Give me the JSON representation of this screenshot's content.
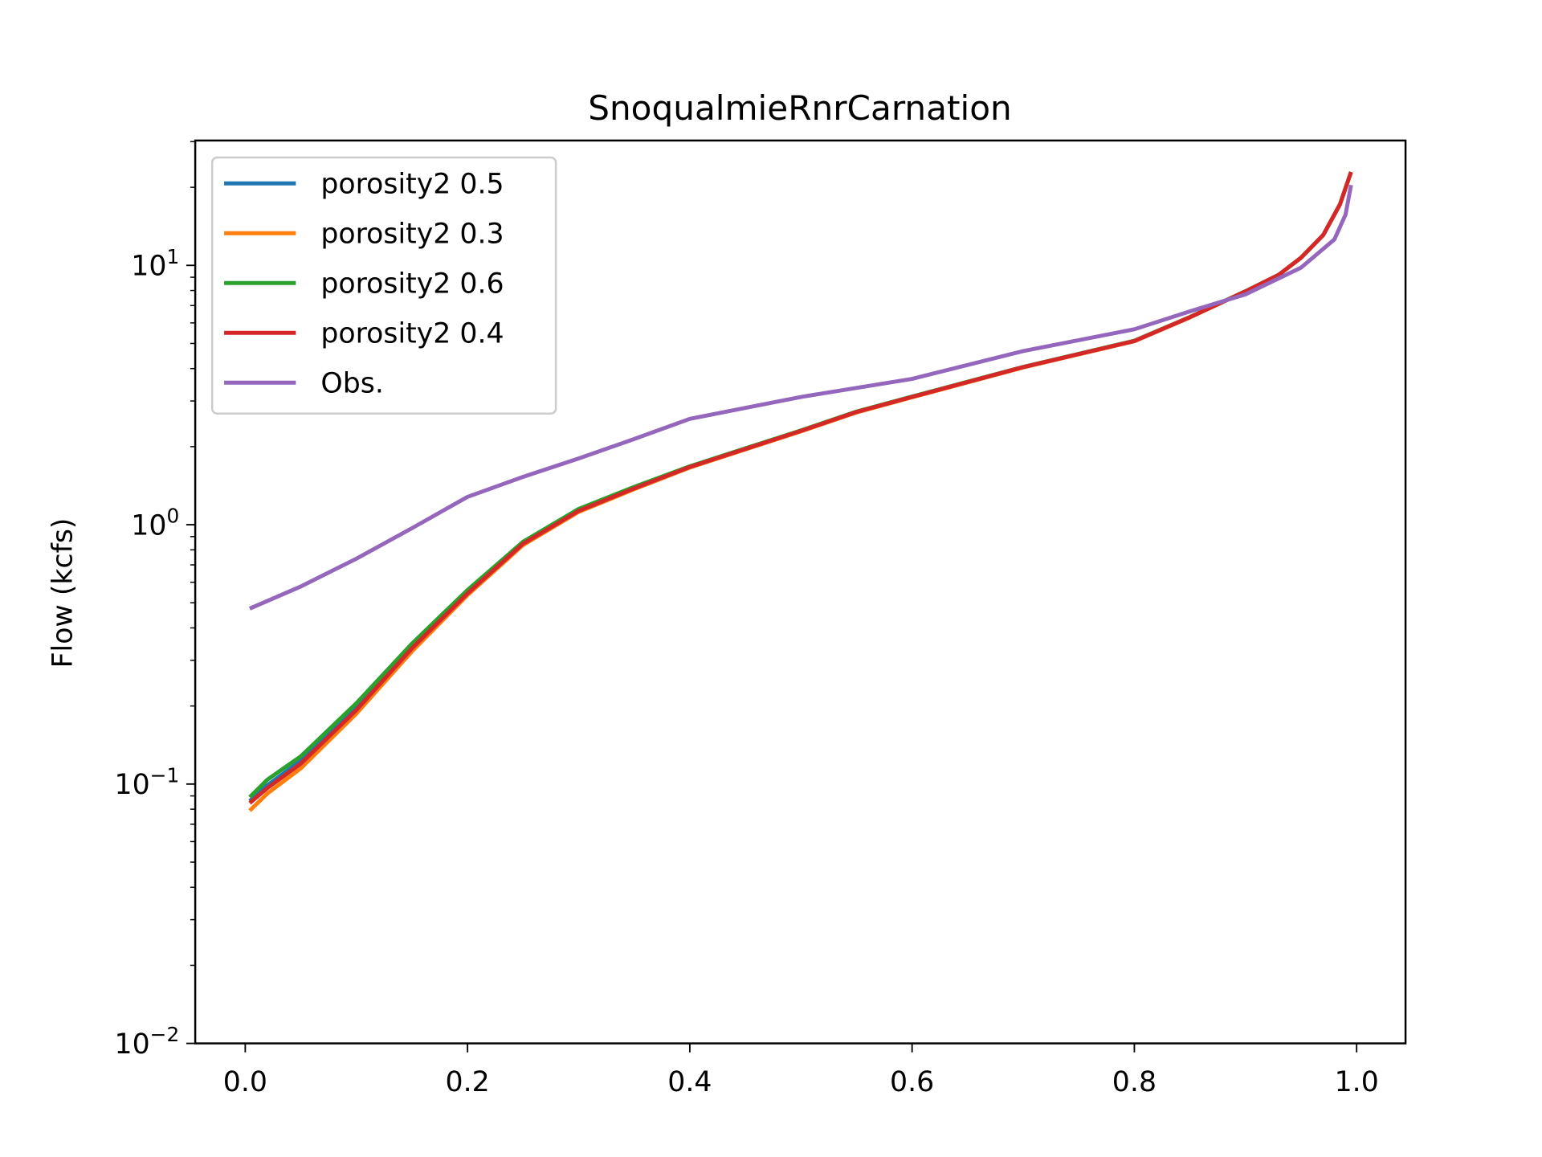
{
  "chart_data": {
    "type": "line",
    "title": "SnoqualmieRnrCarnation",
    "xlabel": "",
    "ylabel": "Flow (kcfs)",
    "xlim": [
      -0.045,
      1.044
    ],
    "ylim": [
      0.01,
      30.3
    ],
    "yscale": "log",
    "grid": false,
    "legend_position": "top-left",
    "xticks": [
      "0.0",
      "0.2",
      "0.4",
      "0.6",
      "0.8",
      "1.0"
    ],
    "xtick_values": [
      0,
      0.2,
      0.4,
      0.6,
      0.8,
      1.0
    ],
    "yticks": [
      {
        "value": 0.01,
        "base": "10",
        "exp": "−2"
      },
      {
        "value": 0.1,
        "base": "10",
        "exp": "−1"
      },
      {
        "value": 1,
        "base": "10",
        "exp": "0"
      },
      {
        "value": 10,
        "base": "10",
        "exp": "1"
      }
    ],
    "series": [
      {
        "name": "porosity2 0.5",
        "color": "#1f77b4",
        "x": [
          0.004,
          0.02,
          0.05,
          0.1,
          0.15,
          0.2,
          0.25,
          0.3,
          0.35,
          0.4,
          0.45,
          0.5,
          0.55,
          0.6,
          0.7,
          0.8,
          0.85,
          0.9,
          0.93,
          0.95,
          0.97,
          0.985,
          0.995
        ],
        "y": [
          0.086,
          0.099,
          0.123,
          0.197,
          0.338,
          0.548,
          0.85,
          1.14,
          1.39,
          1.67,
          1.96,
          2.3,
          2.72,
          3.11,
          4.05,
          5.11,
          6.31,
          7.94,
          9.2,
          10.7,
          13.1,
          17.2,
          22.9
        ]
      },
      {
        "name": "porosity2 0.3",
        "color": "#ff7f0e",
        "x": [
          0.004,
          0.02,
          0.05,
          0.1,
          0.15,
          0.2,
          0.25,
          0.3,
          0.35,
          0.4,
          0.45,
          0.5,
          0.55,
          0.6,
          0.7,
          0.8,
          0.85,
          0.9,
          0.93,
          0.95,
          0.97,
          0.985,
          0.995
        ],
        "y": [
          0.079,
          0.092,
          0.115,
          0.187,
          0.325,
          0.535,
          0.835,
          1.12,
          1.37,
          1.66,
          1.95,
          2.29,
          2.71,
          3.1,
          4.04,
          5.1,
          6.3,
          7.93,
          9.2,
          10.7,
          13.1,
          17.2,
          22.9
        ]
      },
      {
        "name": "porosity2 0.6",
        "color": "#2ca02c",
        "x": [
          0.004,
          0.02,
          0.05,
          0.1,
          0.15,
          0.2,
          0.25,
          0.3,
          0.35,
          0.4,
          0.45,
          0.5,
          0.55,
          0.6,
          0.7,
          0.8,
          0.85,
          0.9,
          0.93,
          0.95,
          0.97,
          0.985,
          0.995
        ],
        "y": [
          0.089,
          0.104,
          0.128,
          0.205,
          0.348,
          0.56,
          0.86,
          1.15,
          1.4,
          1.68,
          1.97,
          2.31,
          2.73,
          3.12,
          4.06,
          5.12,
          6.32,
          7.95,
          9.2,
          10.7,
          13.1,
          17.2,
          22.9
        ]
      },
      {
        "name": "porosity2 0.4",
        "color": "#d62728",
        "x": [
          0.004,
          0.02,
          0.05,
          0.1,
          0.15,
          0.2,
          0.25,
          0.3,
          0.35,
          0.4,
          0.45,
          0.5,
          0.55,
          0.6,
          0.7,
          0.8,
          0.85,
          0.9,
          0.93,
          0.95,
          0.97,
          0.985,
          0.995
        ],
        "y": [
          0.0845,
          0.0966,
          0.12,
          0.193,
          0.334,
          0.543,
          0.845,
          1.13,
          1.38,
          1.67,
          1.96,
          2.3,
          2.72,
          3.11,
          4.05,
          5.11,
          6.31,
          7.94,
          9.2,
          10.7,
          13.1,
          17.2,
          22.9
        ]
      },
      {
        "name": "Obs.",
        "color": "#9467bd",
        "x": [
          0.004,
          0.05,
          0.1,
          0.15,
          0.2,
          0.25,
          0.3,
          0.35,
          0.4,
          0.5,
          0.6,
          0.7,
          0.8,
          0.85,
          0.9,
          0.95,
          0.98,
          0.99,
          0.995
        ],
        "y": [
          0.475,
          0.578,
          0.74,
          0.97,
          1.28,
          1.53,
          1.8,
          2.14,
          2.56,
          3.11,
          3.65,
          4.67,
          5.67,
          6.65,
          7.73,
          9.8,
          12.6,
          15.7,
          20.4
        ]
      }
    ]
  }
}
